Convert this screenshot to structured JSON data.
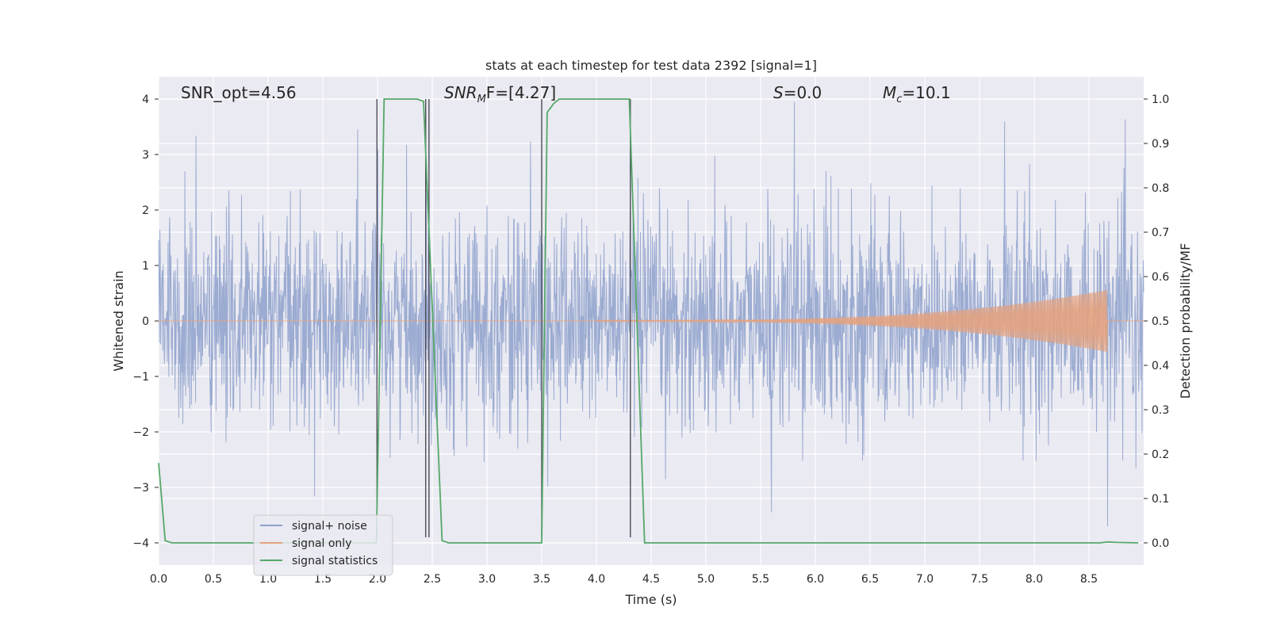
{
  "chart_data": {
    "type": "line",
    "title": "stats at each timestep for test data 2392 [signal=1]",
    "xlabel": "Time (s)",
    "ylabel": "Whitened strain",
    "ylabel_right": "Detection probability/MF",
    "xlim": [
      0.0,
      9.0
    ],
    "ylim": [
      -4.4,
      4.4
    ],
    "ylim_right": [
      -0.05,
      1.05
    ],
    "x_ticks": [
      "0.0",
      "0.5",
      "1.0",
      "1.5",
      "2.0",
      "2.5",
      "3.0",
      "3.5",
      "4.0",
      "4.5",
      "5.0",
      "5.5",
      "6.0",
      "6.5",
      "7.0",
      "7.5",
      "8.0",
      "8.5"
    ],
    "y_ticks": [
      "−4",
      "−3",
      "−2",
      "−1",
      "0",
      "1",
      "2",
      "3",
      "4"
    ],
    "y_ticks_right": [
      "0.0",
      "0.1",
      "0.2",
      "0.3",
      "0.4",
      "0.5",
      "0.6",
      "0.7",
      "0.8",
      "0.9",
      "1.0"
    ],
    "grid": true,
    "legend_position": "lower-left",
    "annotations": {
      "snr_opt": "SNR_opt=4.56",
      "snr_mf_italic": "SNR",
      "snr_mf_sub": "M",
      "snr_mf_tail": "F=[4.27]",
      "s_italic": "S",
      "s_tail": "=0.0",
      "mc_italic": "M",
      "mc_sub": "c",
      "mc_tail": "=10.1"
    },
    "series": [
      {
        "name": "signal+ noise",
        "color": "#8da0cb",
        "description_values": {
          "noise_sigma": 0.95,
          "peaks": [
            [
              1.82,
              3.45
            ],
            [
              5.81,
              3.95
            ],
            [
              7.73,
              3.6
            ],
            [
              8.67,
              -3.7
            ],
            [
              5.6,
              -3.45
            ]
          ]
        }
      },
      {
        "name": "signal only",
        "color": "#e3a27f",
        "chirp": {
          "start": 4.0,
          "merger": 8.67,
          "peak_amplitude": 0.55
        }
      },
      {
        "name": "signal statistics",
        "color": "#55a868",
        "x": [
          0.0,
          0.06,
          0.12,
          0.2,
          1.99,
          2.06,
          2.36,
          2.42,
          2.59,
          2.65,
          3.5,
          3.55,
          3.61,
          3.66,
          4.3,
          4.44,
          4.5,
          8.6,
          8.67,
          8.75,
          8.95
        ],
        "y": [
          0.18,
          0.005,
          0.0,
          0.0,
          0.0,
          1.0,
          1.0,
          0.995,
          0.005,
          0.0,
          0.0,
          0.97,
          0.99,
          1.0,
          1.0,
          0.0,
          0.0,
          0.0,
          0.002,
          0.001,
          0.0
        ]
      }
    ],
    "vertical_lines": [
      1.995,
      2.44,
      2.47,
      3.5,
      4.31
    ],
    "vertical_line_range": [
      -3.9,
      4.0
    ]
  },
  "legend": {
    "noise_label": "signal+ noise",
    "signal_label": "signal only",
    "stats_label": "signal statistics"
  },
  "colors": {
    "panel_bg": "#eaeaf2",
    "grid": "#ffffff",
    "noise": "#8da0cb",
    "signal": "#e3a27f",
    "stats": "#55a868",
    "vline": "#4c4c5a"
  }
}
